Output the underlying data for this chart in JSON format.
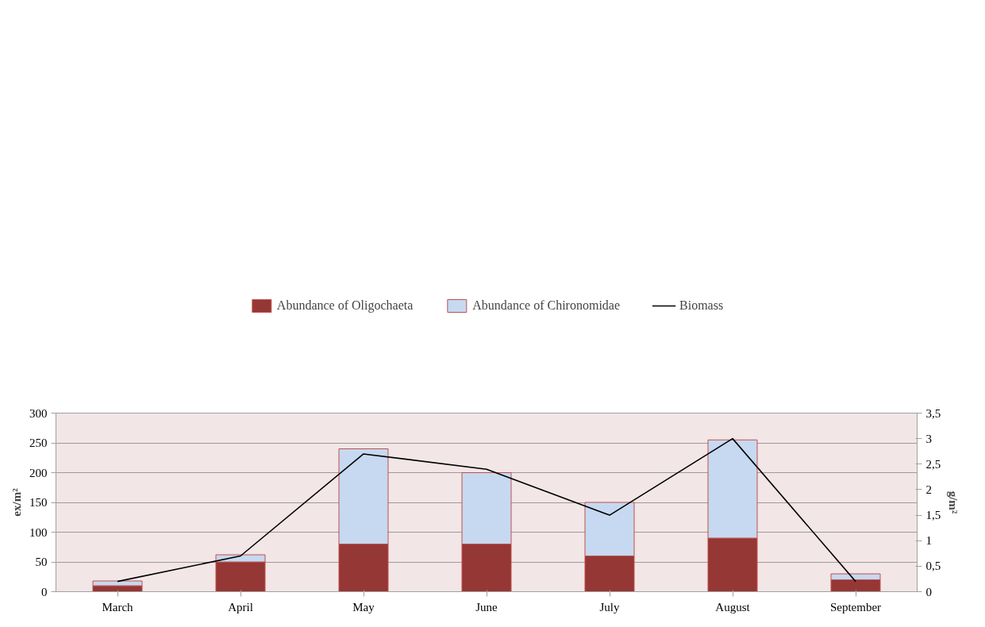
{
  "chart_data": {
    "type": "bar",
    "stacked": true,
    "categories": [
      "March",
      "April",
      "May",
      "June",
      "July",
      "August",
      "September"
    ],
    "series": [
      {
        "name": "Abundance of Oligochaeta",
        "color": "#953735",
        "values": [
          10,
          50,
          80,
          80,
          60,
          90,
          20
        ]
      },
      {
        "name": "Abundance of Chironomidae",
        "color": "#c6d9f1",
        "values": [
          8,
          12,
          160,
          120,
          90,
          165,
          10
        ]
      },
      {
        "name": "Biomass",
        "type": "line",
        "axis": "y2",
        "color": "#000000",
        "values": [
          0.2,
          0.7,
          2.7,
          2.4,
          1.5,
          3.0,
          0.2
        ]
      }
    ],
    "ylabel": "ex/m²",
    "y2label": "g/m²",
    "ylim": [
      0,
      300
    ],
    "yticks": [
      0,
      50,
      100,
      150,
      200,
      250,
      300
    ],
    "y2lim": [
      0,
      3.5
    ],
    "y2ticks": [
      0,
      {
        "value": 0.5,
        "label": "0,5"
      },
      1,
      {
        "value": 1.5,
        "label": "1,5"
      },
      2,
      {
        "value": 2.5,
        "label": "2,5"
      },
      3,
      {
        "value": 3.5,
        "label": "3,5"
      }
    ],
    "grid": "y",
    "legend": "top"
  }
}
